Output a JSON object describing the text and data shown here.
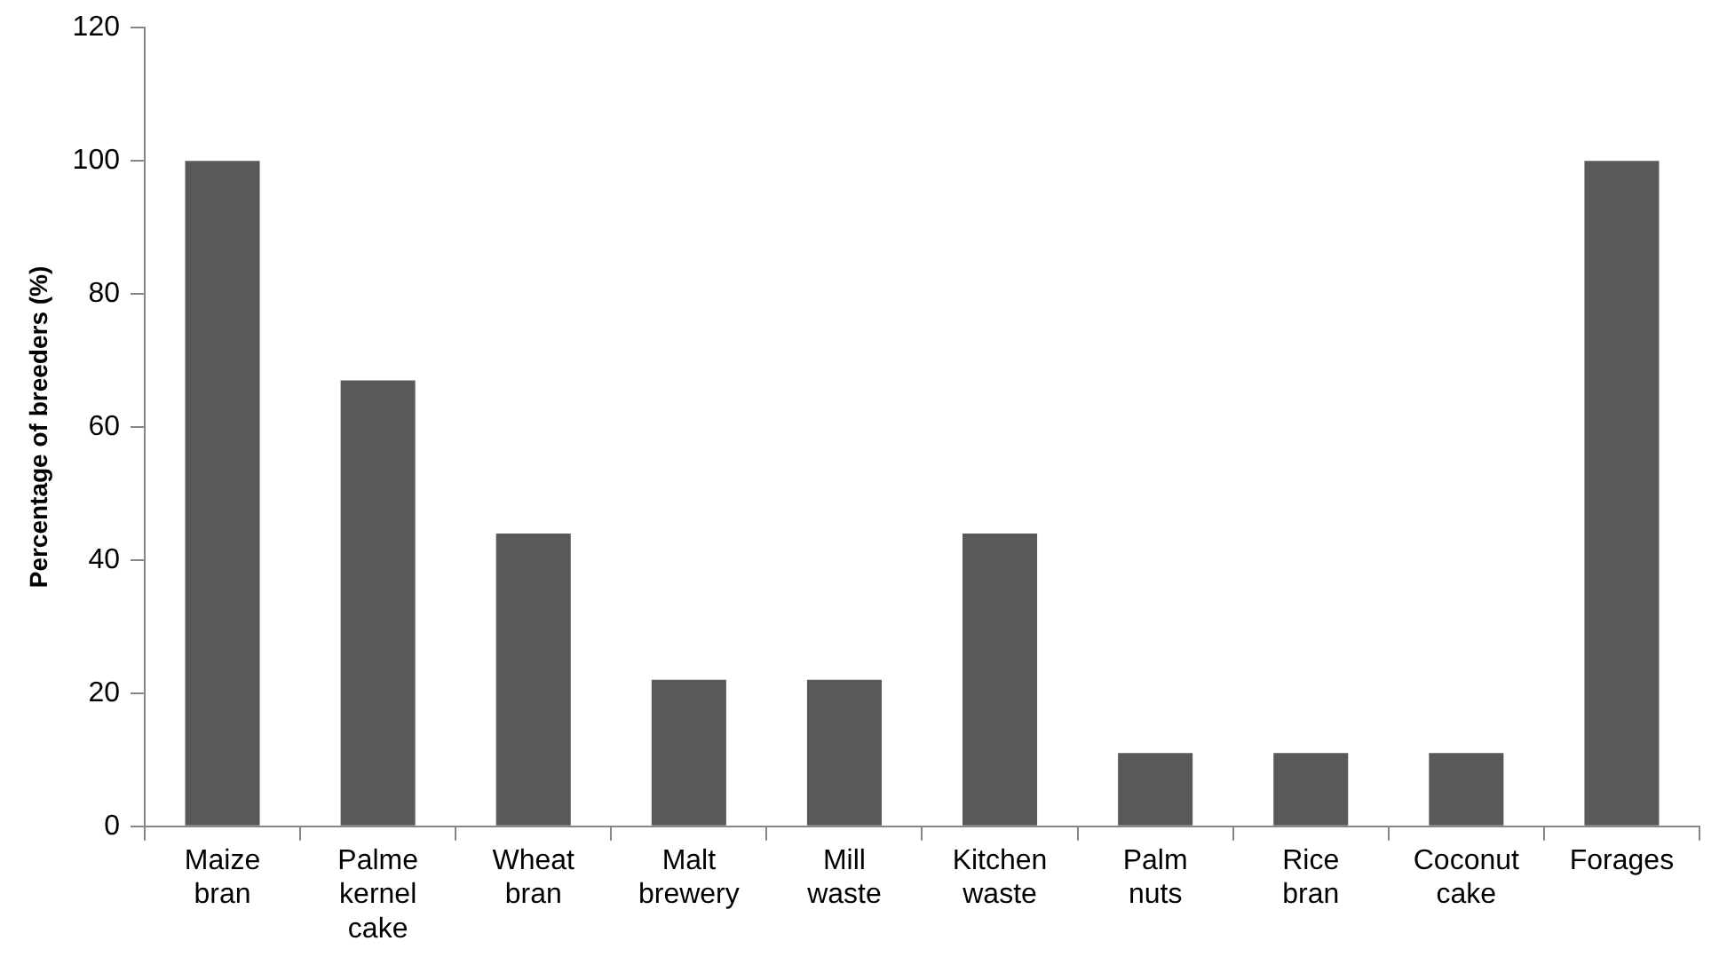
{
  "chart_data": {
    "type": "bar",
    "ylabel": "Percentage of breeders (%)",
    "categories": [
      "Maize bran",
      "Palme kernel cake",
      "Wheat bran",
      "Malt brewery",
      "Mill waste",
      "Kitchen waste",
      "Palm nuts",
      "Rice bran",
      "Coconut cake",
      "Forages"
    ],
    "values": [
      100,
      67,
      44,
      22,
      22,
      44,
      11,
      11,
      11,
      100
    ],
    "color": "#595959",
    "ylim": [
      0,
      120
    ],
    "yticks": [
      0,
      20,
      40,
      60,
      80,
      100,
      120
    ],
    "grid": false,
    "legend": false
  }
}
